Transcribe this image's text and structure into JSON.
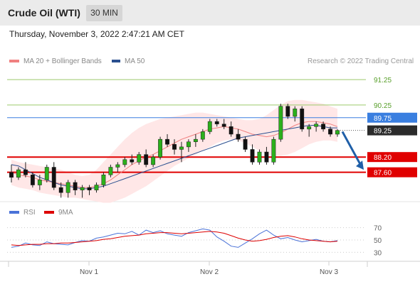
{
  "header": {
    "title": "Crude Oil (WTI)",
    "timeframe": "30 MIN"
  },
  "timestamp": "Thursday, November 3, 2022 2:47:21 AM CET",
  "legend": {
    "ma20": {
      "label": "MA 20 + Bollinger Bands",
      "color": "#f08080"
    },
    "ma50": {
      "label": "MA 50",
      "color": "#2a4f8f"
    }
  },
  "credit": "Research © 2022 Trading Central",
  "chart_data": [
    {
      "type": "candlestick",
      "y_unit": "price",
      "ylim": [
        86.5,
        91.7
      ],
      "x_ticks": [
        "Nov 1",
        "Nov 2",
        "Nov 3"
      ],
      "levels": [
        {
          "value": 91.25,
          "label": "91.25",
          "style": "green-thin"
        },
        {
          "value": 90.25,
          "label": "90.25",
          "style": "green-thin"
        },
        {
          "value": 89.75,
          "label": "89.75",
          "style": "blue-box"
        },
        {
          "value": 89.25,
          "label": "89.25",
          "style": "current-price-dark"
        },
        {
          "value": 88.2,
          "label": "88.20",
          "style": "red-resistance"
        },
        {
          "value": 87.6,
          "label": "87.60",
          "style": "red-resistance"
        }
      ],
      "projection": {
        "from": 89.2,
        "to": 87.7,
        "direction": "down",
        "color": "#1f5fa8"
      },
      "series": [
        {
          "name": "MA 20",
          "color": "#f08080",
          "values": [
            87.6,
            87.5,
            87.45,
            87.4,
            87.3,
            87.25,
            87.2,
            87.15,
            87.1,
            87.05,
            87.0,
            87.0,
            87.05,
            87.15,
            87.3,
            87.5,
            87.7,
            87.9,
            88.05,
            88.2,
            88.3,
            88.45,
            88.6,
            88.75,
            88.9,
            89.0,
            89.1,
            89.2,
            89.3,
            89.35,
            89.4,
            89.35,
            89.3,
            89.2,
            89.1,
            89.05,
            89.0,
            89.05,
            89.15,
            89.3,
            89.45,
            89.55,
            89.6,
            89.6,
            89.55,
            89.5,
            89.4
          ]
        },
        {
          "name": "MA 50",
          "color": "#2a4f8f",
          "values": [
            87.9,
            87.85,
            87.7,
            87.55,
            87.4,
            87.3,
            87.2,
            87.1,
            87.05,
            87.0,
            86.95,
            86.95,
            87.0,
            87.05,
            87.15,
            87.25,
            87.35,
            87.45,
            87.55,
            87.65,
            87.75,
            87.85,
            87.95,
            88.05,
            88.15,
            88.25,
            88.35,
            88.45,
            88.55,
            88.65,
            88.75,
            88.85,
            88.95,
            89.0,
            89.05,
            89.1,
            89.15,
            89.2,
            89.25,
            89.3,
            89.35,
            89.4,
            89.45,
            89.45,
            89.4,
            89.35,
            89.35
          ]
        },
        {
          "name": "BB Upper",
          "color": "#ffd6d6",
          "values": [
            88.1,
            88.0,
            87.95,
            87.9,
            87.85,
            87.8,
            87.75,
            87.7,
            87.6,
            87.5,
            87.45,
            87.5,
            87.7,
            88.0,
            88.3,
            88.6,
            88.9,
            89.15,
            89.35,
            89.5,
            89.6,
            89.7,
            89.75,
            89.8,
            89.85,
            89.9,
            89.95,
            89.95,
            89.9,
            89.85,
            89.8,
            89.75,
            89.7,
            89.65,
            89.65,
            89.7,
            89.85,
            90.05,
            90.25,
            90.4,
            90.45,
            90.45,
            90.4,
            90.35,
            90.3,
            90.2,
            90.1
          ]
        },
        {
          "name": "BB Lower",
          "color": "#ffd6d6",
          "values": [
            87.1,
            87.0,
            86.95,
            86.9,
            86.8,
            86.75,
            86.7,
            86.65,
            86.6,
            86.6,
            86.55,
            86.5,
            86.45,
            86.4,
            86.4,
            86.5,
            86.6,
            86.75,
            86.9,
            87.05,
            87.25,
            87.45,
            87.65,
            87.85,
            88.0,
            88.15,
            88.3,
            88.45,
            88.6,
            88.75,
            88.85,
            88.9,
            88.85,
            88.75,
            88.6,
            88.45,
            88.3,
            88.25,
            88.25,
            88.3,
            88.4,
            88.55,
            88.7,
            88.8,
            88.85,
            88.85,
            88.8
          ]
        }
      ],
      "candles": [
        {
          "o": 87.6,
          "h": 87.9,
          "l": 87.2,
          "c": 87.4
        },
        {
          "o": 87.4,
          "h": 87.8,
          "l": 87.3,
          "c": 87.7
        },
        {
          "o": 87.7,
          "h": 88.0,
          "l": 87.4,
          "c": 87.5
        },
        {
          "o": 87.5,
          "h": 87.6,
          "l": 87.0,
          "c": 87.1
        },
        {
          "o": 87.1,
          "h": 87.5,
          "l": 86.9,
          "c": 87.3
        },
        {
          "o": 87.3,
          "h": 87.9,
          "l": 87.2,
          "c": 87.8
        },
        {
          "o": 87.8,
          "h": 88.0,
          "l": 86.9,
          "c": 87.0
        },
        {
          "o": 87.0,
          "h": 87.2,
          "l": 86.6,
          "c": 86.8
        },
        {
          "o": 86.8,
          "h": 87.3,
          "l": 86.6,
          "c": 87.2
        },
        {
          "o": 87.2,
          "h": 87.3,
          "l": 86.7,
          "c": 86.9
        },
        {
          "o": 86.9,
          "h": 87.1,
          "l": 86.6,
          "c": 87.0
        },
        {
          "o": 87.0,
          "h": 87.1,
          "l": 86.7,
          "c": 86.9
        },
        {
          "o": 86.9,
          "h": 87.2,
          "l": 86.8,
          "c": 87.1
        },
        {
          "o": 87.1,
          "h": 87.6,
          "l": 87.0,
          "c": 87.5
        },
        {
          "o": 87.5,
          "h": 87.9,
          "l": 87.4,
          "c": 87.8
        },
        {
          "o": 87.8,
          "h": 88.0,
          "l": 87.6,
          "c": 87.9
        },
        {
          "o": 87.9,
          "h": 88.2,
          "l": 87.8,
          "c": 88.1
        },
        {
          "o": 88.1,
          "h": 88.3,
          "l": 87.9,
          "c": 88.0
        },
        {
          "o": 88.0,
          "h": 88.4,
          "l": 87.9,
          "c": 88.3
        },
        {
          "o": 88.3,
          "h": 88.5,
          "l": 87.8,
          "c": 87.9
        },
        {
          "o": 87.9,
          "h": 88.3,
          "l": 87.8,
          "c": 88.2
        },
        {
          "o": 88.2,
          "h": 89.0,
          "l": 88.1,
          "c": 88.9
        },
        {
          "o": 88.9,
          "h": 89.1,
          "l": 88.6,
          "c": 88.7
        },
        {
          "o": 88.7,
          "h": 88.9,
          "l": 88.3,
          "c": 88.5
        },
        {
          "o": 88.5,
          "h": 88.8,
          "l": 88.0,
          "c": 88.6
        },
        {
          "o": 88.6,
          "h": 88.9,
          "l": 88.4,
          "c": 88.8
        },
        {
          "o": 88.8,
          "h": 89.1,
          "l": 88.6,
          "c": 88.9
        },
        {
          "o": 88.9,
          "h": 89.3,
          "l": 88.8,
          "c": 89.2
        },
        {
          "o": 89.2,
          "h": 89.7,
          "l": 89.1,
          "c": 89.6
        },
        {
          "o": 89.6,
          "h": 89.7,
          "l": 89.4,
          "c": 89.5
        },
        {
          "o": 89.5,
          "h": 89.7,
          "l": 89.3,
          "c": 89.4
        },
        {
          "o": 89.4,
          "h": 89.6,
          "l": 89.0,
          "c": 89.1
        },
        {
          "o": 89.1,
          "h": 89.3,
          "l": 88.8,
          "c": 88.9
        },
        {
          "o": 88.9,
          "h": 89.0,
          "l": 88.4,
          "c": 88.5
        },
        {
          "o": 88.5,
          "h": 88.7,
          "l": 87.9,
          "c": 88.0
        },
        {
          "o": 88.0,
          "h": 88.5,
          "l": 87.9,
          "c": 88.4
        },
        {
          "o": 88.4,
          "h": 88.6,
          "l": 87.9,
          "c": 88.0
        },
        {
          "o": 88.0,
          "h": 89.0,
          "l": 87.9,
          "c": 88.9
        },
        {
          "o": 88.9,
          "h": 90.3,
          "l": 88.8,
          "c": 90.2
        },
        {
          "o": 90.2,
          "h": 90.3,
          "l": 89.7,
          "c": 89.8
        },
        {
          "o": 89.8,
          "h": 90.2,
          "l": 89.6,
          "c": 90.1
        },
        {
          "o": 90.1,
          "h": 90.2,
          "l": 89.2,
          "c": 89.3
        },
        {
          "o": 89.3,
          "h": 89.5,
          "l": 89.0,
          "c": 89.4
        },
        {
          "o": 89.4,
          "h": 89.6,
          "l": 89.2,
          "c": 89.5
        },
        {
          "o": 89.5,
          "h": 89.6,
          "l": 89.2,
          "c": 89.3
        },
        {
          "o": 89.3,
          "h": 89.4,
          "l": 89.0,
          "c": 89.1
        },
        {
          "o": 89.1,
          "h": 89.3,
          "l": 89.0,
          "c": 89.25
        }
      ]
    },
    {
      "type": "line",
      "title": "",
      "legend": [
        {
          "name": "RSI",
          "color": "#4a72d8"
        },
        {
          "name": "9MA",
          "color": "#dd0000"
        }
      ],
      "ylim": [
        20,
        80
      ],
      "y_ticks": [
        70,
        50,
        30
      ],
      "series": [
        {
          "name": "RSI",
          "values": [
            38,
            40,
            45,
            42,
            41,
            47,
            44,
            43,
            42,
            46,
            49,
            48,
            53,
            55,
            58,
            61,
            60,
            64,
            58,
            66,
            62,
            65,
            60,
            58,
            56,
            62,
            65,
            68,
            66,
            55,
            48,
            40,
            38,
            45,
            52,
            60,
            66,
            58,
            52,
            54,
            50,
            47,
            49,
            51,
            48,
            47,
            49
          ]
        },
        {
          "name": "9MA",
          "values": [
            42,
            41,
            42,
            43,
            43,
            44,
            44,
            45,
            45,
            46,
            47,
            48,
            49,
            51,
            52,
            54,
            56,
            57,
            58,
            60,
            61,
            62,
            62,
            61,
            60,
            61,
            62,
            63,
            64,
            63,
            61,
            57,
            53,
            50,
            48,
            49,
            51,
            54,
            56,
            57,
            55,
            52,
            50,
            49,
            48,
            47,
            48
          ]
        }
      ]
    }
  ]
}
